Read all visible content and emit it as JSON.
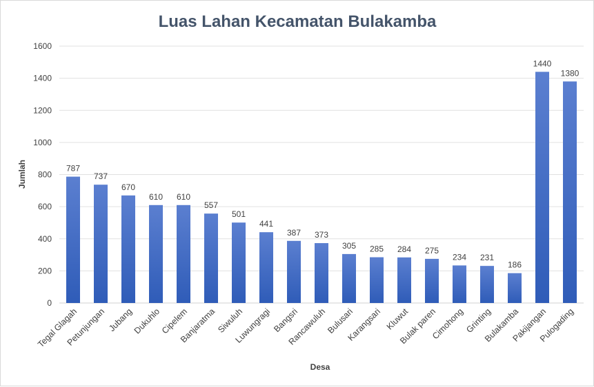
{
  "chart_data": {
    "type": "bar",
    "title": "Luas Lahan  Kecamatan Bulakamba",
    "xlabel": "Desa",
    "ylabel": "Jumlah",
    "ylim": [
      0,
      1600
    ],
    "yticks": [
      0,
      200,
      400,
      600,
      800,
      1000,
      1200,
      1400,
      1600
    ],
    "grid": true,
    "legend": "none",
    "bar_color_top": "#5b7fd0",
    "bar_color_bottom": "#2f5cb8",
    "categories": [
      "Tegal Glagah",
      "Petunjungan",
      "Jubang",
      "Dukuhlo",
      "Cipelem",
      "Banjaratma",
      "Siwuluh",
      "Luwungragi",
      "Bangsri",
      "Rancawuluh",
      "Bulusari",
      "Karangsari",
      "Kluwut",
      "Bulak paren",
      "Cimohong",
      "Grinting",
      "Bulakamba",
      "Pakijangan",
      "Pulogading"
    ],
    "values": [
      787,
      737,
      670,
      610,
      610,
      557,
      501,
      441,
      387,
      373,
      305,
      285,
      284,
      275,
      234,
      231,
      186,
      1440,
      1380
    ]
  }
}
